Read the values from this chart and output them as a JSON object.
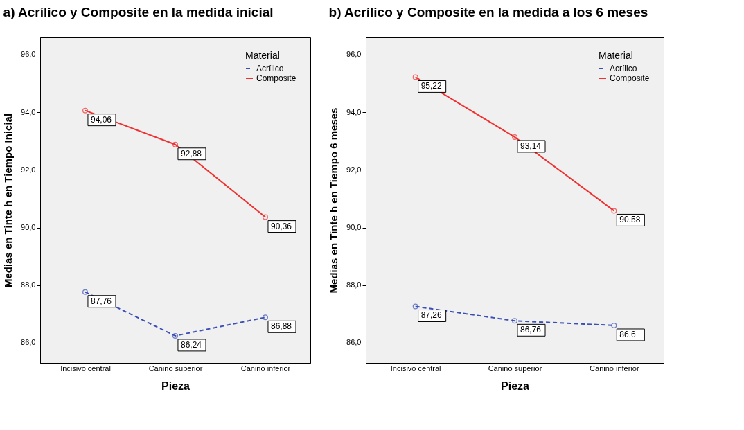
{
  "chart_data": [
    {
      "type": "line",
      "title": "a) Acrílico y Composite en la medida inicial",
      "xlabel": "Pieza",
      "ylabel": "Medias en Tinte h en Tiempo Inicial",
      "legend_title": "Material",
      "legend": "top right",
      "grid": false,
      "marker": "circle",
      "categories": [
        "Incisivo central",
        "Canino superior",
        "Canino inferior"
      ],
      "ylim": [
        85.3,
        96.6
      ],
      "yticks": [
        {
          "value": 86,
          "label": "86,0"
        },
        {
          "value": 88,
          "label": "88,0"
        },
        {
          "value": 90,
          "label": "90,0"
        },
        {
          "value": 92,
          "label": "92,0"
        },
        {
          "value": 94,
          "label": "94,0"
        },
        {
          "value": 96,
          "label": "96,0"
        }
      ],
      "series": [
        {
          "name": "Acrílico",
          "color": "#3a4fb5",
          "line_style": "dashed",
          "values": [
            87.76,
            86.24,
            86.88
          ],
          "value_labels": [
            "87,76",
            "86,24",
            "86,88"
          ]
        },
        {
          "name": "Composite",
          "color": "#f03030",
          "line_style": "solid",
          "values": [
            94.06,
            92.88,
            90.36
          ],
          "value_labels": [
            "94,06",
            "92,88",
            "90,36"
          ]
        }
      ]
    },
    {
      "type": "line",
      "title": "b) Acrílico y Composite en la medida a los 6 meses",
      "xlabel": "Pieza",
      "ylabel": "Medias en Tinte h en Tiempo 6 meses",
      "legend_title": "Material",
      "legend": "top right",
      "grid": false,
      "marker": "circle",
      "categories": [
        "Incisivo central",
        "Canino superior",
        "Canino inferior"
      ],
      "ylim": [
        85.3,
        96.6
      ],
      "yticks": [
        {
          "value": 86,
          "label": "86,0"
        },
        {
          "value": 88,
          "label": "88,0"
        },
        {
          "value": 90,
          "label": "90,0"
        },
        {
          "value": 92,
          "label": "92,0"
        },
        {
          "value": 94,
          "label": "94,0"
        },
        {
          "value": 96,
          "label": "96,0"
        }
      ],
      "series": [
        {
          "name": "Acrílico",
          "color": "#3a4fb5",
          "line_style": "dashed",
          "values": [
            87.26,
            86.76,
            86.6
          ],
          "value_labels": [
            "87,26",
            "86,76",
            "86,6"
          ]
        },
        {
          "name": "Composite",
          "color": "#f03030",
          "line_style": "solid",
          "values": [
            95.22,
            93.14,
            90.58
          ],
          "value_labels": [
            "95,22",
            "93,14",
            "90,58"
          ]
        }
      ]
    }
  ]
}
